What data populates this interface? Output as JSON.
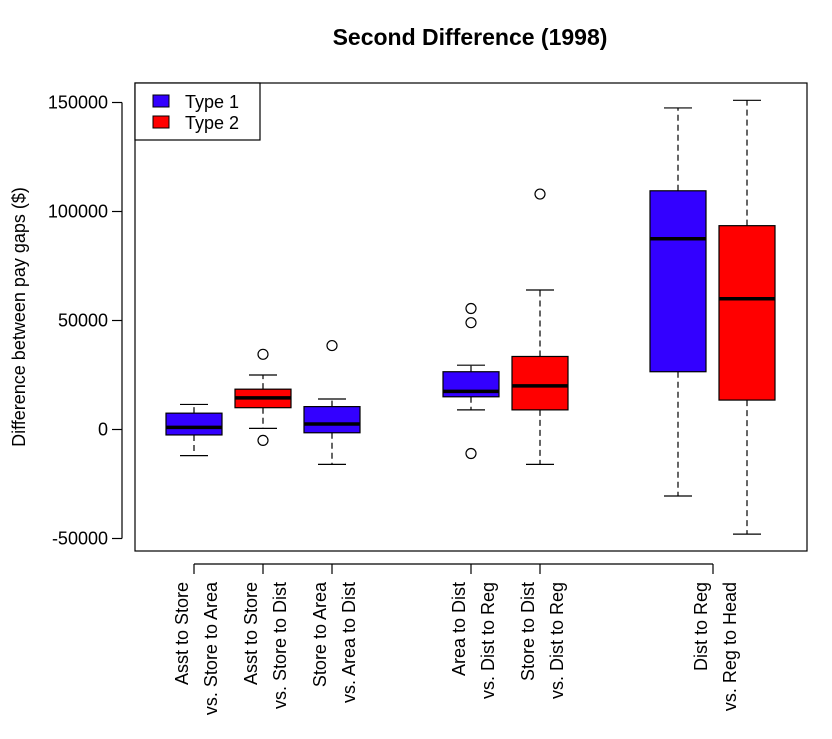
{
  "chart_data": {
    "type": "boxplot",
    "title": "Second Difference (1998)",
    "xlabel": "",
    "ylabel": "Difference between pay gaps ($)",
    "ylim": [
      -55000,
      160000
    ],
    "yticks": [
      -50000,
      0,
      50000,
      100000,
      150000
    ],
    "ytick_labels": [
      "-50000",
      "0",
      "50000",
      "100000",
      "150000"
    ],
    "grid": false,
    "legend": {
      "placement": "top-left",
      "entries": [
        {
          "label": "Type 1",
          "color": "#3300ff"
        },
        {
          "label": "Type 2",
          "color": "#ff0000"
        }
      ]
    },
    "categories": [
      {
        "line1": "Asst to Store",
        "line2": "vs. Store to Area"
      },
      {
        "line1": "Asst to Store",
        "line2": "vs. Store to Dist"
      },
      {
        "line1": "Store to Area",
        "line2": "vs. Area to Dist"
      },
      {
        "line1": "Area to Dist",
        "line2": "vs. Dist to Reg"
      },
      {
        "line1": "Store to Dist",
        "line2": "vs. Dist to Reg"
      },
      {
        "line1": "Dist to Reg",
        "line2": "vs. Reg to Head"
      }
    ],
    "boxes": [
      {
        "category": 0,
        "type": "Type 1",
        "color": "#3300ff",
        "min": -12000,
        "q1": -2500,
        "median": 1000,
        "q3": 7500,
        "max": 11500,
        "outliers": []
      },
      {
        "category": 1,
        "type": "Type 2",
        "color": "#ff0000",
        "min": 500,
        "q1": 10000,
        "median": 14500,
        "q3": 18500,
        "max": 25000,
        "outliers": [
          34500,
          -5000
        ]
      },
      {
        "category": 2,
        "type": "Type 1",
        "color": "#3300ff",
        "min": -16000,
        "q1": -1500,
        "median": 2500,
        "q3": 10500,
        "max": 14000,
        "outliers": [
          38500
        ]
      },
      {
        "category": 3,
        "type": "Type 1",
        "color": "#3300ff",
        "min": 9000,
        "q1": 15000,
        "median": 17500,
        "q3": 26500,
        "max": 29500,
        "outliers": [
          55500,
          49000,
          -11000
        ]
      },
      {
        "category": 4,
        "type": "Type 2",
        "color": "#ff0000",
        "min": -16000,
        "q1": 9000,
        "median": 20000,
        "q3": 33500,
        "max": 64000,
        "outliers": [
          108000
        ]
      },
      {
        "category": 5,
        "type": "Type 1",
        "color": "#3300ff",
        "min": -30500,
        "q1": 26500,
        "median": 87500,
        "q3": 109500,
        "max": 147500,
        "outliers": []
      },
      {
        "category": 5,
        "type": "Type 2",
        "color": "#ff0000",
        "min": -48000,
        "q1": 13500,
        "median": 60000,
        "q3": 93500,
        "max": 151000,
        "outliers": []
      }
    ]
  }
}
